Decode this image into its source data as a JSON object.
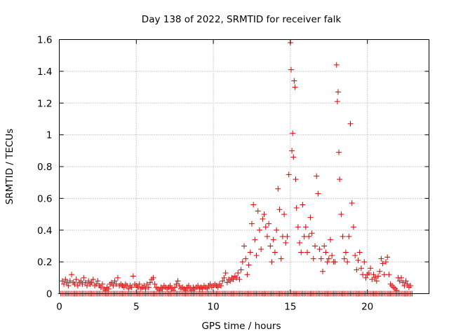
{
  "chart_data": {
    "type": "scatter",
    "title": "Day 138 of 2022, SRMTID for receiver falk",
    "xlabel": "GPS time / hours",
    "ylabel": "SRMTID / TECUs",
    "xlim": [
      0,
      24
    ],
    "ylim": [
      0,
      1.6
    ],
    "xticks": [
      0,
      5,
      10,
      15,
      20
    ],
    "xtick_labels": [
      "0",
      "5",
      "10",
      "15",
      "20"
    ],
    "yticks": [
      0,
      0.2,
      0.4,
      0.6,
      0.8,
      1,
      1.2,
      1.4,
      1.6
    ],
    "ytick_labels": [
      "0",
      "0.2",
      "0.4",
      "0.6",
      "0.8",
      "1",
      "1.2",
      "1.4",
      "1.6"
    ],
    "grid": true,
    "marker": "+",
    "color": "#e00000",
    "series": [
      {
        "name": "SRMTID",
        "points": [
          [
            0.2,
            0.08
          ],
          [
            0.3,
            0.06
          ],
          [
            0.4,
            0.09
          ],
          [
            0.5,
            0.07
          ],
          [
            0.6,
            0.05
          ],
          [
            0.7,
            0.08
          ],
          [
            0.8,
            0.12
          ],
          [
            0.9,
            0.07
          ],
          [
            1.0,
            0.06
          ],
          [
            1.1,
            0.09
          ],
          [
            1.2,
            0.05
          ],
          [
            1.3,
            0.07
          ],
          [
            1.4,
            0.08
          ],
          [
            1.5,
            0.06
          ],
          [
            1.6,
            0.1
          ],
          [
            1.7,
            0.07
          ],
          [
            1.8,
            0.05
          ],
          [
            1.9,
            0.08
          ],
          [
            2.0,
            0.06
          ],
          [
            2.1,
            0.07
          ],
          [
            2.2,
            0.09
          ],
          [
            2.3,
            0.05
          ],
          [
            2.4,
            0.06
          ],
          [
            2.5,
            0.08
          ],
          [
            2.6,
            0.05
          ],
          [
            2.7,
            0.04
          ],
          [
            2.8,
            0.06
          ],
          [
            2.9,
            0.03
          ],
          [
            3.0,
            0.02
          ],
          [
            3.1,
            0.04
          ],
          [
            3.2,
            0.03
          ],
          [
            3.3,
            0.06
          ],
          [
            3.4,
            0.07
          ],
          [
            3.5,
            0.05
          ],
          [
            3.6,
            0.08
          ],
          [
            3.7,
            0.06
          ],
          [
            3.8,
            0.1
          ],
          [
            3.9,
            0.05
          ],
          [
            4.0,
            0.06
          ],
          [
            4.1,
            0.05
          ],
          [
            4.2,
            0.04
          ],
          [
            4.3,
            0.06
          ],
          [
            4.4,
            0.05
          ],
          [
            4.5,
            0.03
          ],
          [
            4.6,
            0.05
          ],
          [
            4.7,
            0.04
          ],
          [
            4.8,
            0.11
          ],
          [
            4.9,
            0.06
          ],
          [
            5.0,
            0.05
          ],
          [
            5.1,
            0.04
          ],
          [
            5.2,
            0.06
          ],
          [
            5.3,
            0.03
          ],
          [
            5.4,
            0.04
          ],
          [
            5.5,
            0.05
          ],
          [
            5.6,
            0.03
          ],
          [
            5.7,
            0.06
          ],
          [
            5.8,
            0.04
          ],
          [
            5.9,
            0.07
          ],
          [
            6.0,
            0.09
          ],
          [
            6.1,
            0.1
          ],
          [
            6.2,
            0.06
          ],
          [
            6.3,
            0.04
          ],
          [
            6.4,
            0.03
          ],
          [
            6.5,
            0.02
          ],
          [
            6.6,
            0.04
          ],
          [
            6.7,
            0.03
          ],
          [
            6.8,
            0.05
          ],
          [
            6.9,
            0.04
          ],
          [
            7.0,
            0.03
          ],
          [
            7.1,
            0.04
          ],
          [
            7.2,
            0.05
          ],
          [
            7.3,
            0.03
          ],
          [
            7.4,
            0.02
          ],
          [
            7.5,
            0.04
          ],
          [
            7.6,
            0.06
          ],
          [
            7.7,
            0.08
          ],
          [
            7.8,
            0.05
          ],
          [
            7.9,
            0.03
          ],
          [
            8.0,
            0.04
          ],
          [
            8.1,
            0.03
          ],
          [
            8.2,
            0.02
          ],
          [
            8.3,
            0.04
          ],
          [
            8.4,
            0.05
          ],
          [
            8.5,
            0.03
          ],
          [
            8.6,
            0.02
          ],
          [
            8.7,
            0.04
          ],
          [
            8.8,
            0.03
          ],
          [
            8.9,
            0.04
          ],
          [
            9.0,
            0.05
          ],
          [
            9.1,
            0.03
          ],
          [
            9.2,
            0.04
          ],
          [
            9.3,
            0.03
          ],
          [
            9.4,
            0.05
          ],
          [
            9.5,
            0.04
          ],
          [
            9.6,
            0.03
          ],
          [
            9.7,
            0.05
          ],
          [
            9.8,
            0.06
          ],
          [
            9.9,
            0.04
          ],
          [
            10.0,
            0.05
          ],
          [
            10.1,
            0.06
          ],
          [
            10.2,
            0.05
          ],
          [
            10.3,
            0.04
          ],
          [
            10.4,
            0.06
          ],
          [
            10.5,
            0.05
          ],
          [
            10.6,
            0.08
          ],
          [
            10.7,
            0.1
          ],
          [
            10.8,
            0.13
          ],
          [
            10.9,
            0.07
          ],
          [
            11.0,
            0.09
          ],
          [
            11.1,
            0.08
          ],
          [
            11.2,
            0.1
          ],
          [
            11.3,
            0.09
          ],
          [
            11.4,
            0.11
          ],
          [
            11.5,
            0.1
          ],
          [
            11.6,
            0.13
          ],
          [
            11.7,
            0.09
          ],
          [
            11.8,
            0.15
          ],
          [
            11.9,
            0.2
          ],
          [
            12.0,
            0.3
          ],
          [
            12.1,
            0.22
          ],
          [
            12.2,
            0.12
          ],
          [
            12.3,
            0.18
          ],
          [
            12.4,
            0.26
          ],
          [
            12.5,
            0.44
          ],
          [
            12.6,
            0.56
          ],
          [
            12.7,
            0.34
          ],
          [
            12.8,
            0.24
          ],
          [
            12.9,
            0.52
          ],
          [
            13.0,
            0.4
          ],
          [
            13.1,
            0.28
          ],
          [
            13.2,
            0.47
          ],
          [
            13.3,
            0.5
          ],
          [
            13.4,
            0.42
          ],
          [
            13.5,
            0.36
          ],
          [
            13.6,
            0.44
          ],
          [
            13.7,
            0.3
          ],
          [
            13.8,
            0.2
          ],
          [
            13.9,
            0.34
          ],
          [
            14.0,
            0.26
          ],
          [
            14.1,
            0.4
          ],
          [
            14.2,
            0.66
          ],
          [
            14.3,
            0.53
          ],
          [
            14.4,
            0.22
          ],
          [
            14.5,
            0.36
          ],
          [
            14.6,
            0.5
          ],
          [
            14.7,
            0.32
          ],
          [
            14.8,
            0.36
          ],
          [
            14.9,
            0.75
          ],
          [
            15.0,
            1.58
          ],
          [
            15.05,
            1.41
          ],
          [
            15.1,
            0.9
          ],
          [
            15.15,
            1.01
          ],
          [
            15.2,
            0.86
          ],
          [
            15.25,
            1.34
          ],
          [
            15.3,
            1.3
          ],
          [
            15.35,
            0.72
          ],
          [
            15.4,
            0.54
          ],
          [
            15.5,
            0.42
          ],
          [
            15.6,
            0.32
          ],
          [
            15.7,
            0.26
          ],
          [
            15.8,
            0.56
          ],
          [
            15.9,
            0.36
          ],
          [
            16.0,
            0.42
          ],
          [
            16.1,
            0.26
          ],
          [
            16.2,
            0.36
          ],
          [
            16.3,
            0.48
          ],
          [
            16.4,
            0.38
          ],
          [
            16.5,
            0.22
          ],
          [
            16.6,
            0.3
          ],
          [
            16.7,
            0.74
          ],
          [
            16.8,
            0.63
          ],
          [
            16.9,
            0.28
          ],
          [
            17.0,
            0.22
          ],
          [
            17.1,
            0.14
          ],
          [
            17.2,
            0.3
          ],
          [
            17.3,
            0.26
          ],
          [
            17.4,
            0.2
          ],
          [
            17.5,
            0.22
          ],
          [
            17.6,
            0.34
          ],
          [
            17.7,
            0.24
          ],
          [
            17.8,
            0.2
          ],
          [
            17.9,
            0.2
          ],
          [
            18.0,
            1.44
          ],
          [
            18.05,
            1.21
          ],
          [
            18.1,
            1.27
          ],
          [
            18.15,
            0.89
          ],
          [
            18.2,
            0.72
          ],
          [
            18.3,
            0.5
          ],
          [
            18.4,
            0.36
          ],
          [
            18.5,
            0.22
          ],
          [
            18.6,
            0.26
          ],
          [
            18.7,
            0.2
          ],
          [
            18.8,
            0.36
          ],
          [
            18.9,
            1.07
          ],
          [
            19.0,
            0.57
          ],
          [
            19.1,
            0.42
          ],
          [
            19.2,
            0.24
          ],
          [
            19.3,
            0.15
          ],
          [
            19.4,
            0.21
          ],
          [
            19.5,
            0.26
          ],
          [
            19.6,
            0.16
          ],
          [
            19.7,
            0.12
          ],
          [
            19.8,
            0.2
          ],
          [
            19.9,
            0.1
          ],
          [
            20.0,
            0.12
          ],
          [
            20.1,
            0.13
          ],
          [
            20.2,
            0.16
          ],
          [
            20.3,
            0.09
          ],
          [
            20.4,
            0.12
          ],
          [
            20.5,
            0.1
          ],
          [
            20.6,
            0.08
          ],
          [
            20.7,
            0.11
          ],
          [
            20.8,
            0.14
          ],
          [
            20.9,
            0.22
          ],
          [
            21.0,
            0.19
          ],
          [
            21.1,
            0.12
          ],
          [
            21.2,
            0.2
          ],
          [
            21.3,
            0.23
          ],
          [
            21.4,
            0.12
          ],
          [
            21.5,
            0.06
          ],
          [
            21.6,
            0.05
          ],
          [
            21.7,
            0.04
          ],
          [
            21.8,
            0.03
          ],
          [
            21.9,
            0.02
          ],
          [
            22.0,
            0.1
          ],
          [
            22.1,
            0.08
          ],
          [
            22.2,
            0.1
          ],
          [
            22.3,
            0.07
          ],
          [
            22.4,
            0.05
          ],
          [
            22.5,
            0.08
          ],
          [
            22.6,
            0.06
          ],
          [
            22.7,
            0.04
          ],
          [
            22.8,
            0.05
          ]
        ],
        "zero_band": {
          "from": 0.1,
          "to": 22.9,
          "step": 0.1,
          "value": 0
        }
      }
    ]
  }
}
